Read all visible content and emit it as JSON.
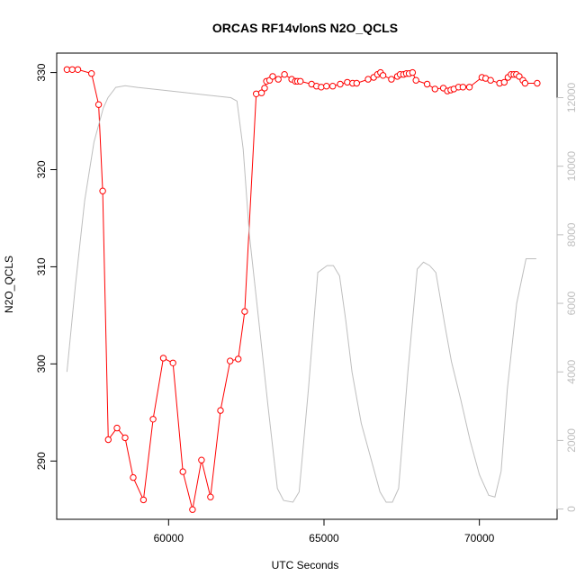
{
  "chart_data": {
    "type": "line",
    "title": "ORCAS RF14vlonS N2O_QCLS",
    "xlabel": "UTC Seconds",
    "ylabel": "N2O_QCLS",
    "xlim": [
      56400,
      72500
    ],
    "ylim": [
      284,
      332
    ],
    "y2lim": [
      -300,
      13300
    ],
    "x_ticks": [
      60000,
      65000,
      70000
    ],
    "y_ticks": [
      290,
      300,
      310,
      320,
      330
    ],
    "y2_ticks": [
      0,
      2000,
      4000,
      6000,
      8000,
      10000,
      12000
    ],
    "grid": false,
    "colors": {
      "primary": "#ff0000",
      "secondary": "#bebebe",
      "axis": "#000000"
    },
    "series": [
      {
        "axis": "left",
        "style": "line-points",
        "x": [
          56730,
          56900,
          57080,
          57520,
          57750,
          57880,
          58060,
          58340,
          58600,
          58860,
          59190,
          59500,
          59830,
          60140,
          60460,
          60770,
          61060,
          61350,
          61670,
          61980,
          62240,
          62450,
          62820,
          62990,
          63090,
          63150,
          63250,
          63350,
          63530,
          63730,
          63960,
          64080,
          64150,
          64240,
          64600,
          64760,
          64910,
          65080,
          65280,
          65520,
          65750,
          65920,
          66050,
          66420,
          66600,
          66720,
          66820,
          66900,
          67170,
          67360,
          67450,
          67560,
          67650,
          67740,
          67850,
          67960,
          68320,
          68570,
          68840,
          68970,
          69080,
          69180,
          69330,
          69470,
          69680,
          70080,
          70200,
          70360,
          70650,
          70800,
          70920,
          71020,
          71110,
          71190,
          71280,
          71400,
          71470,
          71860
        ],
        "y": [
          330.3,
          330.3,
          330.3,
          329.9,
          326.7,
          317.8,
          292.2,
          293.4,
          292.4,
          288.3,
          286.0,
          294.3,
          300.6,
          300.1,
          288.9,
          285.0,
          290.1,
          286.3,
          295.2,
          300.3,
          300.5,
          305.4,
          327.8,
          327.9,
          328.4,
          329.1,
          329.2,
          329.6,
          329.3,
          329.8,
          329.3,
          329.1,
          329.1,
          329.1,
          328.8,
          328.6,
          328.5,
          328.6,
          328.6,
          328.8,
          329.0,
          328.9,
          328.9,
          329.3,
          329.5,
          329.8,
          330.0,
          329.7,
          329.3,
          329.6,
          329.8,
          329.8,
          329.9,
          329.9,
          330.0,
          329.2,
          328.8,
          328.3,
          328.4,
          328.1,
          328.2,
          328.3,
          328.5,
          328.5,
          328.5,
          329.5,
          329.4,
          329.2,
          328.9,
          329.0,
          329.5,
          329.8,
          329.8,
          329.8,
          329.6,
          329.2,
          328.9,
          328.9
        ]
      },
      {
        "axis": "right",
        "style": "line",
        "x": [
          56730,
          57000,
          57300,
          57600,
          57900,
          58050,
          58300,
          58600,
          59000,
          59500,
          60000,
          60500,
          61000,
          61500,
          62000,
          62200,
          62400,
          62600,
          62900,
          63200,
          63500,
          63700,
          64000,
          64200,
          64500,
          64800,
          65100,
          65300,
          65500,
          65700,
          65900,
          66200,
          66500,
          66800,
          67000,
          67200,
          67400,
          67700,
          68000,
          68200,
          68400,
          68600,
          68900,
          69100,
          69400,
          69700,
          70000,
          70300,
          70500,
          70700,
          70900,
          71200,
          71500,
          71830
        ],
        "y": [
          4000,
          6500,
          9000,
          10700,
          11700,
          12000,
          12300,
          12350,
          12300,
          12250,
          12200,
          12150,
          12100,
          12050,
          12000,
          11900,
          10500,
          8000,
          5500,
          3000,
          600,
          250,
          200,
          500,
          3500,
          6900,
          7100,
          7100,
          6800,
          5500,
          4000,
          2500,
          1500,
          500,
          200,
          200,
          600,
          4000,
          7000,
          7200,
          7100,
          6900,
          5300,
          4300,
          3200,
          2000,
          1000,
          400,
          350,
          1100,
          3500,
          6000,
          7300,
          7300
        ]
      }
    ]
  }
}
